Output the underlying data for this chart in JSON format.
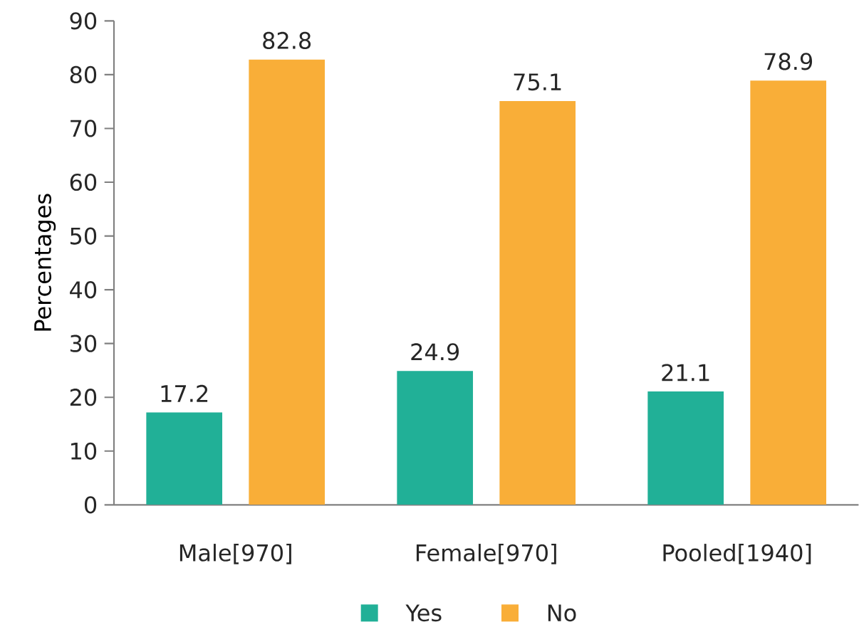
{
  "chart_data": {
    "type": "bar",
    "ylabel": "Percentages",
    "categories": [
      "Male[970]",
      "Female[970]",
      "Pooled[1940]"
    ],
    "series": [
      {
        "name": "Yes",
        "color": "#21b097",
        "values": [
          17.2,
          24.9,
          21.1
        ]
      },
      {
        "name": "No",
        "color": "#f9ae38",
        "values": [
          82.8,
          75.1,
          78.9
        ]
      }
    ],
    "ylim": [
      0,
      90
    ],
    "yticks": [
      0,
      10,
      20,
      30,
      40,
      50,
      60,
      70,
      80,
      90
    ],
    "data_labels": true,
    "legend": "bottom",
    "grid": false
  }
}
